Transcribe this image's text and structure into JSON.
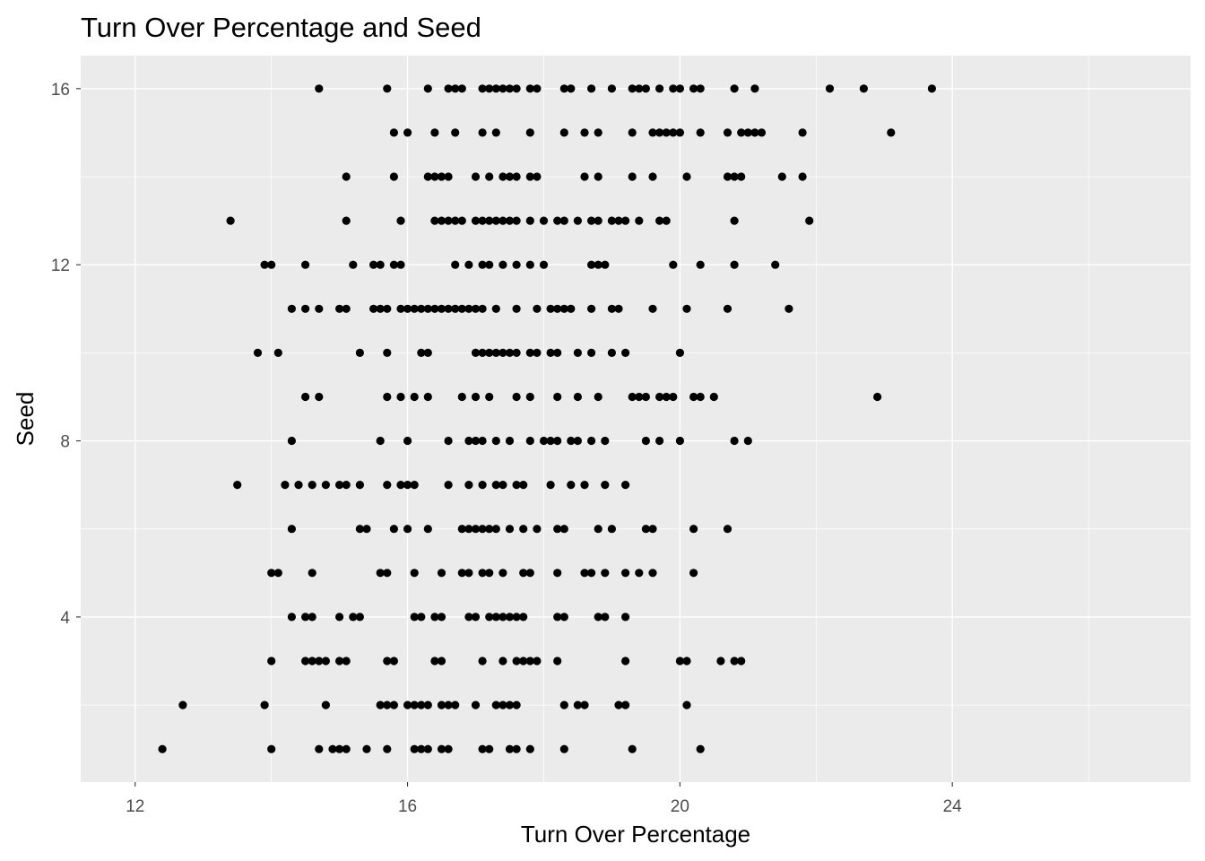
{
  "chart_data": {
    "type": "scatter",
    "title": "Turn Over Percentage and Seed",
    "xlabel": "Turn Over Percentage",
    "ylabel": "Seed",
    "xlim": [
      11.2,
      27.5
    ],
    "ylim": [
      0.25,
      16.75
    ],
    "x_ticks": [
      12,
      16,
      20,
      24
    ],
    "y_ticks": [
      4,
      8,
      12,
      16
    ],
    "x_minor": [
      14,
      18,
      22,
      26
    ],
    "y_minor": [
      2,
      6,
      10,
      14
    ],
    "grid": true,
    "legend": "none",
    "panel_color": "#EBEBEB",
    "grid_color": "#FFFFFF",
    "point_color": "#000000",
    "points": [
      {
        "seed": 16,
        "x": [
          14.7,
          15.7,
          16.3,
          16.6,
          16.7,
          16.8,
          17.1,
          17.2,
          17.3,
          17.4,
          17.5,
          17.6,
          17.8,
          17.9,
          18.3,
          18.4,
          18.7,
          19.0,
          19.3,
          19.4,
          19.5,
          19.7,
          19.9,
          20.0,
          20.2,
          20.3,
          20.8,
          21.1,
          22.2,
          22.7,
          23.7
        ]
      },
      {
        "seed": 15,
        "x": [
          15.8,
          16.0,
          16.4,
          16.7,
          17.1,
          17.3,
          17.8,
          18.3,
          18.6,
          18.8,
          19.3,
          19.6,
          19.7,
          19.8,
          19.9,
          20.0,
          20.3,
          20.7,
          20.9,
          21.0,
          21.1,
          21.2,
          21.8,
          23.1
        ]
      },
      {
        "seed": 14,
        "x": [
          15.1,
          15.8,
          16.3,
          16.4,
          16.5,
          16.6,
          17.0,
          17.2,
          17.4,
          17.5,
          17.6,
          17.8,
          17.9,
          18.6,
          18.8,
          19.3,
          19.6,
          20.1,
          20.7,
          20.8,
          20.9,
          21.5,
          21.8
        ]
      },
      {
        "seed": 13,
        "x": [
          13.4,
          15.1,
          15.9,
          16.4,
          16.5,
          16.6,
          16.7,
          16.8,
          17.0,
          17.1,
          17.2,
          17.3,
          17.4,
          17.5,
          17.6,
          17.8,
          18.0,
          18.2,
          18.3,
          18.5,
          18.7,
          18.8,
          19.0,
          19.1,
          19.2,
          19.4,
          19.7,
          19.8,
          20.8,
          21.9
        ]
      },
      {
        "seed": 12,
        "x": [
          13.9,
          14.0,
          14.5,
          15.2,
          15.5,
          15.6,
          15.8,
          15.9,
          16.7,
          16.9,
          17.1,
          17.2,
          17.4,
          17.6,
          17.8,
          18.0,
          18.7,
          18.8,
          18.9,
          19.9,
          20.3,
          20.8,
          21.4
        ]
      },
      {
        "seed": 11,
        "x": [
          14.3,
          14.5,
          14.7,
          15.0,
          15.1,
          15.5,
          15.6,
          15.7,
          15.9,
          16.0,
          16.1,
          16.2,
          16.3,
          16.4,
          16.5,
          16.6,
          16.7,
          16.8,
          16.9,
          17.0,
          17.1,
          17.3,
          17.6,
          17.9,
          18.1,
          18.2,
          18.3,
          18.4,
          18.7,
          19.0,
          19.1,
          19.6,
          20.1,
          20.7,
          21.6
        ]
      },
      {
        "seed": 10,
        "x": [
          13.8,
          14.1,
          15.3,
          15.7,
          16.2,
          16.3,
          17.0,
          17.1,
          17.2,
          17.3,
          17.4,
          17.5,
          17.6,
          17.8,
          17.9,
          18.1,
          18.2,
          18.5,
          18.7,
          19.0,
          19.2,
          20.0
        ]
      },
      {
        "seed": 9,
        "x": [
          14.5,
          14.7,
          15.7,
          15.9,
          16.1,
          16.3,
          16.8,
          17.0,
          17.2,
          17.6,
          17.8,
          18.2,
          18.5,
          18.8,
          19.3,
          19.4,
          19.5,
          19.7,
          19.8,
          19.9,
          20.2,
          20.3,
          20.5,
          22.9
        ]
      },
      {
        "seed": 8,
        "x": [
          14.3,
          15.6,
          16.0,
          16.6,
          16.9,
          17.0,
          17.1,
          17.3,
          17.5,
          17.8,
          18.0,
          18.1,
          18.2,
          18.4,
          18.5,
          18.7,
          18.9,
          19.5,
          19.7,
          20.0,
          20.8,
          21.0
        ]
      },
      {
        "seed": 7,
        "x": [
          13.5,
          14.2,
          14.4,
          14.6,
          14.8,
          15.0,
          15.1,
          15.3,
          15.7,
          15.9,
          16.0,
          16.1,
          16.6,
          16.9,
          17.1,
          17.3,
          17.4,
          17.6,
          17.7,
          18.1,
          18.4,
          18.6,
          18.9,
          19.2
        ]
      },
      {
        "seed": 6,
        "x": [
          14.3,
          15.3,
          15.4,
          15.8,
          16.0,
          16.3,
          16.8,
          16.9,
          17.0,
          17.1,
          17.2,
          17.3,
          17.5,
          17.7,
          17.9,
          18.2,
          18.3,
          18.8,
          19.0,
          19.5,
          19.6,
          20.2,
          20.7
        ]
      },
      {
        "seed": 5,
        "x": [
          14.0,
          14.1,
          14.6,
          15.6,
          15.7,
          16.1,
          16.5,
          16.8,
          16.9,
          17.1,
          17.2,
          17.4,
          17.7,
          17.8,
          18.2,
          18.6,
          18.7,
          18.9,
          19.2,
          19.4,
          19.6,
          20.2
        ]
      },
      {
        "seed": 4,
        "x": [
          14.3,
          14.5,
          14.6,
          15.0,
          15.2,
          15.3,
          16.1,
          16.2,
          16.4,
          16.5,
          16.9,
          17.0,
          17.2,
          17.3,
          17.4,
          17.5,
          17.6,
          17.7,
          18.2,
          18.3,
          18.8,
          18.9,
          19.2
        ]
      },
      {
        "seed": 3,
        "x": [
          14.0,
          14.5,
          14.6,
          14.7,
          14.8,
          15.0,
          15.1,
          15.7,
          15.8,
          16.4,
          16.5,
          17.1,
          17.4,
          17.6,
          17.7,
          17.8,
          17.9,
          18.2,
          19.2,
          20.0,
          20.1,
          20.6,
          20.8,
          20.9
        ]
      },
      {
        "seed": 2,
        "x": [
          12.7,
          13.9,
          14.8,
          15.6,
          15.7,
          15.8,
          16.0,
          16.1,
          16.2,
          16.3,
          16.5,
          16.6,
          16.7,
          17.0,
          17.3,
          17.4,
          17.5,
          17.6,
          18.3,
          18.5,
          18.6,
          19.1,
          19.2,
          20.1
        ]
      },
      {
        "seed": 1,
        "x": [
          12.4,
          14.0,
          14.7,
          14.9,
          15.0,
          15.1,
          15.4,
          15.7,
          16.1,
          16.2,
          16.3,
          16.5,
          16.6,
          17.1,
          17.2,
          17.5,
          17.6,
          17.8,
          18.3,
          19.3,
          20.3
        ]
      }
    ]
  }
}
